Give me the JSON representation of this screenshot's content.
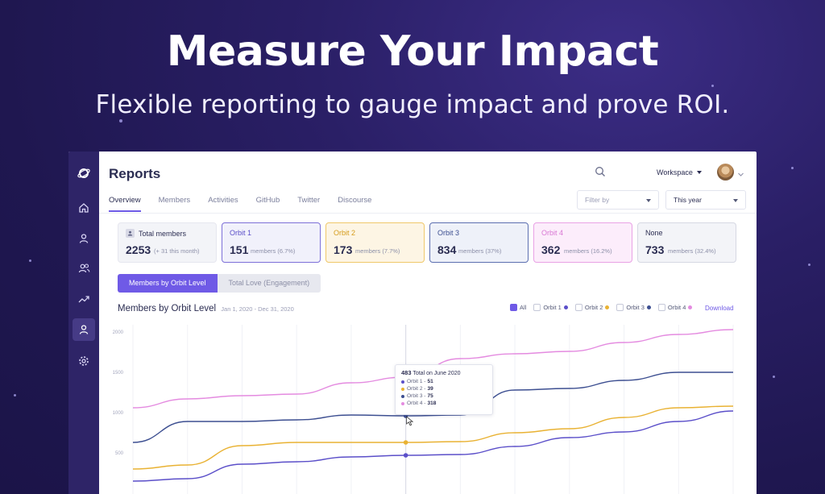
{
  "hero": {
    "title": "Measure Your Impact",
    "subtitle": "Flexible reporting to gauge impact and prove ROI."
  },
  "sidebar": {
    "icons": [
      "orbit-logo-icon",
      "home-icon",
      "user-icon",
      "users-icon",
      "trending-icon",
      "member-icon",
      "gear-icon"
    ],
    "active": "member-icon"
  },
  "header": {
    "title": "Reports",
    "workspace_label": "Workspace"
  },
  "tabs": [
    "Overview",
    "Members",
    "Activities",
    "GitHub",
    "Twitter",
    "Discourse"
  ],
  "filters": {
    "filter_by_placeholder": "Filter by",
    "period_value": "This year"
  },
  "cards": [
    {
      "label": "Total members",
      "value": "2253",
      "sub": "(+ 31 this month)"
    },
    {
      "label": "Orbit 1",
      "value": "151",
      "sub": "members (6.7%)"
    },
    {
      "label": "Orbit 2",
      "value": "173",
      "sub": "members (7.7%)"
    },
    {
      "label": "Orbit 3",
      "value": "834",
      "sub": "members (37%)"
    },
    {
      "label": "Orbit 4",
      "value": "362",
      "sub": "members (16.2%)"
    },
    {
      "label": "None",
      "value": "733",
      "sub": "members (32.4%)"
    }
  ],
  "segments": {
    "active": "Members by Orbit Level",
    "inactive": "Total Love (Engagement)"
  },
  "chart_header": {
    "title": "Members by Orbit Level",
    "range": "Jan 1, 2020 - Dec 31, 2020",
    "download": "Download"
  },
  "legend": [
    {
      "label": "All",
      "checked": true,
      "color": ""
    },
    {
      "label": "Orbit 1",
      "checked": false,
      "color": "#5b4fc9"
    },
    {
      "label": "Orbit 2",
      "checked": false,
      "color": "#e9b233"
    },
    {
      "label": "Orbit 3",
      "checked": false,
      "color": "#3d4f91"
    },
    {
      "label": "Orbit 4",
      "checked": false,
      "color": "#e48be0"
    }
  ],
  "tooltip": {
    "total": "483",
    "total_text": "Total on June 2020",
    "rows": [
      {
        "label": "Orbit 1 -",
        "value": "51",
        "color": "#5b4fc9"
      },
      {
        "label": "Orbit 2 -",
        "value": "39",
        "color": "#e9b233"
      },
      {
        "label": "Orbit 3 -",
        "value": "75",
        "color": "#3d4f91"
      },
      {
        "label": "Orbit 4 -",
        "value": "318",
        "color": "#e48be0"
      }
    ]
  },
  "chart_data": {
    "type": "line",
    "title": "Members by Orbit Level",
    "y_ticks": [
      "2000",
      "1500",
      "1000",
      "500"
    ],
    "ylim": [
      0,
      2100
    ],
    "x": [
      0,
      1,
      2,
      3,
      4,
      5,
      6,
      7,
      8,
      9,
      10,
      11
    ],
    "series": [
      {
        "name": "Orbit 4",
        "color": "#e48be0",
        "values": [
          1050,
          1160,
          1200,
          1220,
          1360,
          1430,
          1660,
          1720,
          1750,
          1860,
          1960,
          2020
        ]
      },
      {
        "name": "Orbit 3",
        "color": "#3d4f91",
        "values": [
          620,
          880,
          880,
          900,
          960,
          950,
          960,
          1270,
          1290,
          1390,
          1490,
          1490
        ]
      },
      {
        "name": "Orbit 2",
        "color": "#e9b233",
        "values": [
          290,
          340,
          580,
          620,
          620,
          620,
          630,
          740,
          790,
          930,
          1050,
          1070
        ]
      },
      {
        "name": "Orbit 1",
        "color": "#5b4fc9",
        "values": [
          140,
          170,
          350,
          380,
          440,
          460,
          470,
          570,
          680,
          750,
          880,
          1010
        ]
      }
    ]
  }
}
